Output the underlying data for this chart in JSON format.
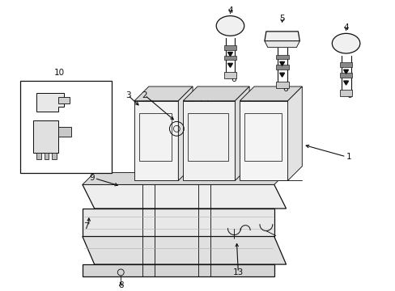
{
  "background_color": "#ffffff",
  "fig_width": 4.89,
  "fig_height": 3.6,
  "dpi": 100,
  "lc": "#111111",
  "lw": 0.9,
  "fs": 7.5
}
